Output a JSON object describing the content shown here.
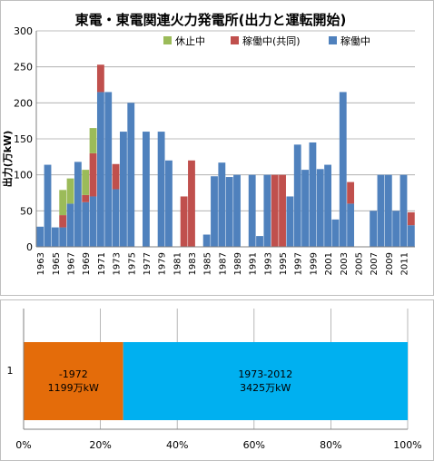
{
  "colors": {
    "operating": "#4f81bd",
    "joint": "#c0504d",
    "suspended": "#9bbb59",
    "pre": "#e46c0a",
    "post": "#00b0f0",
    "grid": "#a6a6a6"
  },
  "chart_data": [
    {
      "type": "bar",
      "stacked": true,
      "title": "東電・東電関連火力発電所(出力と運転開始)",
      "xlabel": "",
      "ylabel": "出力(万kW)",
      "ylim": [
        0,
        300
      ],
      "yticks": [
        "0",
        "50",
        "100",
        "150",
        "200",
        "250",
        "300"
      ],
      "grid": true,
      "legend_position": "top-right",
      "categories": [
        "1963",
        "1964",
        "1965",
        "1966",
        "1967",
        "1968",
        "1969",
        "1970",
        "1971",
        "1972",
        "1973",
        "1974",
        "1975",
        "1976",
        "1977",
        "1978",
        "1979",
        "1980",
        "1981",
        "1982",
        "1983",
        "1984",
        "1985",
        "1986",
        "1987",
        "1988",
        "1989",
        "1990",
        "1991",
        "1992",
        "1993",
        "1994",
        "1995",
        "1996",
        "1997",
        "1998",
        "1999",
        "2000",
        "2001",
        "2002",
        "2003",
        "2004",
        "2005",
        "2006",
        "2007",
        "2008",
        "2009",
        "2010",
        "2011",
        "2012"
      ],
      "tick_labels": [
        "1963",
        "1965",
        "1967",
        "1969",
        "1971",
        "1973",
        "1975",
        "1977",
        "1979",
        "1981",
        "1983",
        "1985",
        "1987",
        "1989",
        "1991",
        "1993",
        "1995",
        "1997",
        "1999",
        "2001",
        "2003",
        "2005",
        "2007",
        "2009",
        "2011"
      ],
      "series": [
        {
          "name": "稼働中",
          "values": [
            28,
            114,
            27,
            27,
            60,
            118,
            62,
            70,
            215,
            215,
            80,
            160,
            200,
            0,
            160,
            0,
            160,
            120,
            0,
            0,
            0,
            0,
            17,
            98,
            117,
            97,
            100,
            0,
            100,
            15,
            100,
            0,
            0,
            70,
            142,
            107,
            145,
            108,
            114,
            38,
            215,
            60,
            0,
            0,
            50,
            100,
            100,
            50,
            100,
            30
          ]
        },
        {
          "name": "稼働中(共同)",
          "values": [
            0,
            0,
            0,
            17,
            0,
            0,
            10,
            60,
            38,
            0,
            35,
            0,
            0,
            0,
            0,
            0,
            0,
            0,
            0,
            70,
            120,
            0,
            0,
            0,
            0,
            0,
            0,
            0,
            0,
            0,
            0,
            100,
            100,
            0,
            0,
            0,
            0,
            0,
            0,
            0,
            0,
            30,
            0,
            0,
            0,
            0,
            0,
            0,
            0,
            18
          ]
        },
        {
          "name": "休止中",
          "values": [
            0,
            0,
            0,
            35,
            35,
            0,
            35,
            35,
            0,
            0,
            0,
            0,
            0,
            0,
            0,
            0,
            0,
            0,
            0,
            0,
            0,
            0,
            0,
            0,
            0,
            0,
            0,
            0,
            0,
            0,
            0,
            0,
            0,
            0,
            0,
            0,
            0,
            0,
            0,
            0,
            0,
            0,
            0,
            0,
            0,
            0,
            0,
            0,
            0,
            0
          ]
        }
      ]
    },
    {
      "type": "bar",
      "orientation": "horizontal",
      "stacked_percent": true,
      "categories": [
        "1"
      ],
      "xticks": [
        "0%",
        "20%",
        "40%",
        "60%",
        "80%",
        "100%"
      ],
      "series": [
        {
          "name": "-1972",
          "values": [
            1199
          ],
          "label": "1199万kW"
        },
        {
          "name": "1973-2012",
          "values": [
            3425
          ],
          "label": "3425万kW"
        }
      ]
    }
  ]
}
